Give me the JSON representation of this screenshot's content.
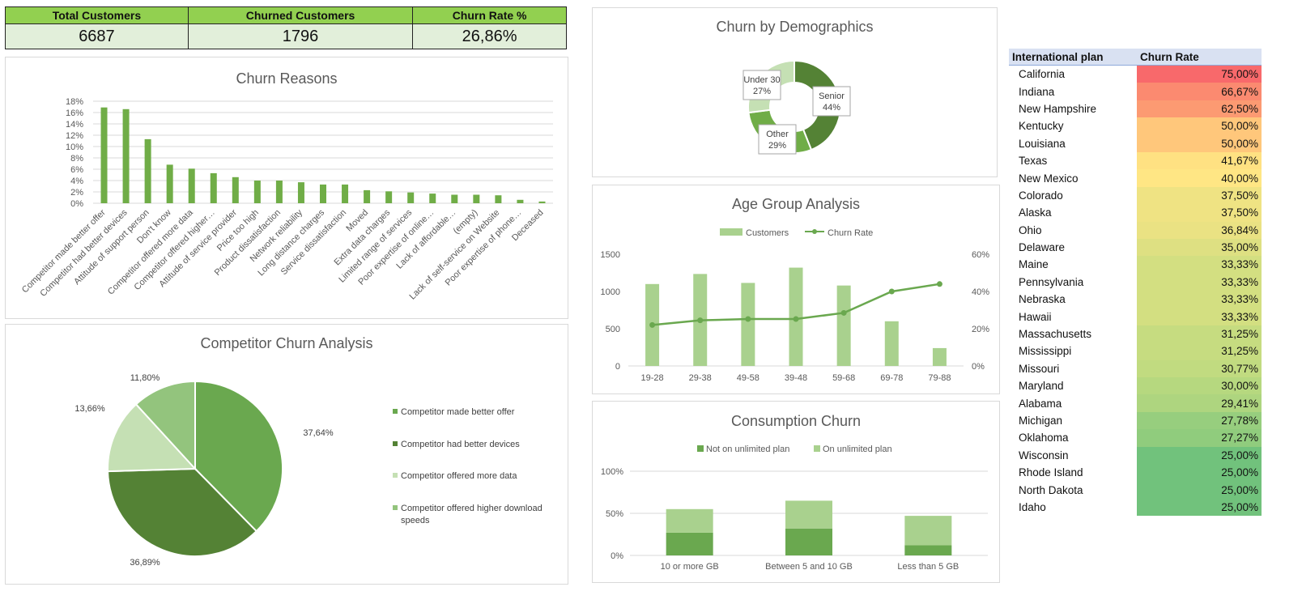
{
  "kpis": {
    "total_label": "Total Customers",
    "total_value": "6687",
    "churned_label": "Churned Customers",
    "churned_value": "1796",
    "rate_label": "Churn Rate %",
    "rate_value": "26,86%"
  },
  "colors": {
    "green_dark": "#548235",
    "green": "#70ad47",
    "green_mid": "#6aa84f",
    "green_light": "#a9d18e",
    "green_pale": "#c5e0b4"
  },
  "chart_data": [
    {
      "id": "churn_reasons",
      "type": "bar",
      "title": "Churn Reasons",
      "categories": [
        "Competitor made better offer",
        "Competitor had better devices",
        "Attitude of support person",
        "Don't know",
        "Competitor offered more data",
        "Competitor offered higher…",
        "Attitude of service provider",
        "Price too high",
        "Product dissatisfaction",
        "Network reliability",
        "Long distance charges",
        "Service dissatisfaction",
        "Moved",
        "Extra data charges",
        "Limited range of services",
        "Poor expertise of online…",
        "Lack of affordable…",
        "(empty)",
        "Lack of self-service on Website",
        "Poor expertise of phone…",
        "Deceased"
      ],
      "values": [
        16.9,
        16.6,
        11.3,
        6.8,
        6.1,
        5.3,
        4.6,
        4.0,
        4.0,
        3.7,
        3.3,
        3.3,
        2.3,
        2.1,
        1.9,
        1.7,
        1.5,
        1.5,
        1.4,
        0.6,
        0.3
      ],
      "ylim": [
        0,
        18
      ],
      "yticks": [
        "0%",
        "2%",
        "4%",
        "6%",
        "8%",
        "10%",
        "12%",
        "14%",
        "16%",
        "18%"
      ],
      "grid": true
    },
    {
      "id": "competitor_churn",
      "type": "pie",
      "title": "Competitor Churn Analysis",
      "labels": [
        "Competitor made better offer",
        "Competitor had better devices",
        "Competitor offered more data",
        "Competitor offered higher download speeds"
      ],
      "legend_lines": [
        [
          "Competitor made better offer"
        ],
        [
          "Competitor had better devices"
        ],
        [
          "Competitor offered more data"
        ],
        [
          "Competitor offered higher download",
          "speeds"
        ]
      ],
      "values": [
        37.64,
        36.89,
        13.66,
        11.8
      ],
      "value_labels": [
        "37,64%",
        "36,89%",
        "13,66%",
        "11,80%"
      ],
      "legend": "right"
    },
    {
      "id": "churn_demographics",
      "type": "pie",
      "title": "Churn by Demographics",
      "labels": [
        "Senior",
        "Other",
        "Under 30"
      ],
      "values": [
        44,
        29,
        27
      ],
      "value_labels": [
        "44%",
        "29%",
        "27%"
      ]
    },
    {
      "id": "age_group",
      "type": "bar",
      "title": "Age Group Analysis",
      "categories": [
        "19-28",
        "29-38",
        "49-58",
        "39-48",
        "59-68",
        "69-78",
        "79-88"
      ],
      "series": [
        {
          "name": "Customers",
          "type": "bar",
          "values": [
            1100,
            1235,
            1115,
            1320,
            1080,
            600,
            240
          ]
        },
        {
          "name": "Churn Rate",
          "type": "line",
          "values": [
            22,
            24.5,
            25.2,
            25.2,
            28.5,
            40,
            44
          ]
        }
      ],
      "ylim": [
        0,
        1500
      ],
      "yticks": [
        "0",
        "500",
        "1000",
        "1500"
      ],
      "y2lim": [
        0,
        60
      ],
      "y2ticks": [
        "0%",
        "20%",
        "40%",
        "60%"
      ],
      "legend": "top"
    },
    {
      "id": "consumption_churn",
      "type": "bar",
      "title": "Consumption Churn",
      "categories": [
        "10 or more GB",
        "Between 5 and 10 GB",
        "Less than 5 GB"
      ],
      "series": [
        {
          "name": "Not on unlimited plan",
          "values": [
            27,
            32,
            12
          ]
        },
        {
          "name": "On unlimited plan",
          "values": [
            28,
            33,
            35
          ]
        }
      ],
      "ylim": [
        0,
        100
      ],
      "yticks": [
        "0%",
        "50%",
        "100%"
      ],
      "legend": "top"
    },
    {
      "id": "international_plan",
      "type": "table",
      "headers": [
        "International plan",
        "Churn Rate"
      ],
      "rows": [
        {
          "state": "California",
          "rate": "75,00%",
          "value": 75.0
        },
        {
          "state": "Indiana",
          "rate": "66,67%",
          "value": 66.67
        },
        {
          "state": "New Hampshire",
          "rate": "62,50%",
          "value": 62.5
        },
        {
          "state": "Kentucky",
          "rate": "50,00%",
          "value": 50.0
        },
        {
          "state": "Louisiana",
          "rate": "50,00%",
          "value": 50.0
        },
        {
          "state": "Texas",
          "rate": "41,67%",
          "value": 41.67
        },
        {
          "state": "New Mexico",
          "rate": "40,00%",
          "value": 40.0
        },
        {
          "state": "Colorado",
          "rate": "37,50%",
          "value": 37.5
        },
        {
          "state": "Alaska",
          "rate": "37,50%",
          "value": 37.5
        },
        {
          "state": "Ohio",
          "rate": "36,84%",
          "value": 36.84
        },
        {
          "state": "Delaware",
          "rate": "35,00%",
          "value": 35.0
        },
        {
          "state": "Maine",
          "rate": "33,33%",
          "value": 33.33
        },
        {
          "state": "Pennsylvania",
          "rate": "33,33%",
          "value": 33.33
        },
        {
          "state": "Nebraska",
          "rate": "33,33%",
          "value": 33.33
        },
        {
          "state": "Hawaii",
          "rate": "33,33%",
          "value": 33.33
        },
        {
          "state": "Massachusetts",
          "rate": "31,25%",
          "value": 31.25
        },
        {
          "state": "Mississippi",
          "rate": "31,25%",
          "value": 31.25
        },
        {
          "state": "Missouri",
          "rate": "30,77%",
          "value": 30.77
        },
        {
          "state": "Maryland",
          "rate": "30,00%",
          "value": 30.0
        },
        {
          "state": "Alabama",
          "rate": "29,41%",
          "value": 29.41
        },
        {
          "state": "Michigan",
          "rate": "27,78%",
          "value": 27.78
        },
        {
          "state": "Oklahoma",
          "rate": "27,27%",
          "value": 27.27
        },
        {
          "state": "Wisconsin",
          "rate": "25,00%",
          "value": 25.0
        },
        {
          "state": "Rhode Island",
          "rate": "25,00%",
          "value": 25.0
        },
        {
          "state": "North Dakota",
          "rate": "25,00%",
          "value": 25.0
        },
        {
          "state": "Idaho",
          "rate": "25,00%",
          "value": 25.0
        }
      ]
    }
  ]
}
